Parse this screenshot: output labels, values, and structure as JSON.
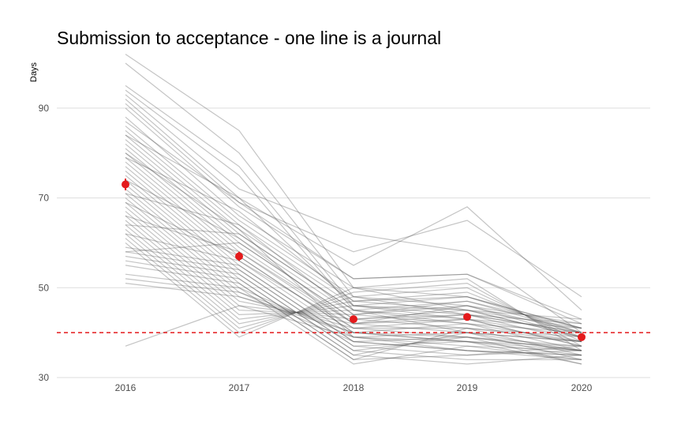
{
  "chart_data": {
    "type": "line",
    "title": "Submission to acceptance - one line is a journal",
    "ylabel": "Days",
    "xlabel": "",
    "x": [
      "2016",
      "2017",
      "2018",
      "2019",
      "2020"
    ],
    "ylim": [
      30,
      100
    ],
    "yticks": [
      30,
      50,
      70,
      90
    ],
    "grid": "horizontal",
    "legend": "none",
    "reference_line": {
      "y": 40,
      "color": "#e41a1c",
      "style": "dashed"
    },
    "mean": {
      "values": [
        73,
        57,
        43,
        43.5,
        39
      ],
      "error": [
        1.3,
        1.0,
        0.6,
        0.6,
        0.5
      ],
      "color": "#e41a1c"
    },
    "journal_color": "#555555",
    "journals": [
      [
        102,
        85,
        50,
        45,
        41
      ],
      [
        100,
        80,
        48,
        44,
        40
      ],
      [
        95,
        77,
        46,
        43,
        39
      ],
      [
        94,
        75,
        45,
        42,
        38
      ],
      [
        93,
        72,
        62,
        58,
        40
      ],
      [
        92,
        70,
        55,
        68,
        45
      ],
      [
        91,
        69,
        58,
        65,
        48
      ],
      [
        90,
        68,
        52,
        53,
        42
      ],
      [
        88,
        66,
        50,
        48,
        41
      ],
      [
        86,
        65,
        48,
        46,
        40
      ],
      [
        85,
        64,
        47,
        45,
        39
      ],
      [
        84,
        63,
        46,
        44,
        38
      ],
      [
        83,
        62,
        45,
        43,
        37
      ],
      [
        82,
        61,
        44,
        42,
        36
      ],
      [
        81,
        60,
        43,
        41,
        35
      ],
      [
        80,
        59,
        42,
        40,
        34
      ],
      [
        79,
        58,
        41,
        39,
        33
      ],
      [
        78,
        57,
        40,
        38,
        33
      ],
      [
        77,
        56,
        39,
        37,
        34
      ],
      [
        76,
        55,
        38,
        36,
        35
      ],
      [
        75,
        54,
        37,
        38,
        36
      ],
      [
        74,
        53,
        36,
        39,
        37
      ],
      [
        73,
        52,
        35,
        40,
        38
      ],
      [
        72,
        51,
        34,
        41,
        39
      ],
      [
        71,
        50,
        33,
        37,
        36
      ],
      [
        70,
        49,
        40,
        42,
        40
      ],
      [
        69,
        48,
        41,
        43,
        41
      ],
      [
        68,
        47,
        42,
        44,
        42
      ],
      [
        67,
        46,
        43,
        45,
        43
      ],
      [
        66,
        45,
        44,
        46,
        42
      ],
      [
        65,
        44,
        45,
        47,
        41
      ],
      [
        64,
        43,
        46,
        48,
        40
      ],
      [
        63,
        42,
        47,
        49,
        39
      ],
      [
        62,
        41,
        48,
        50,
        38
      ],
      [
        61,
        40,
        49,
        51,
        37
      ],
      [
        60,
        39,
        50,
        52,
        36
      ],
      [
        59,
        55,
        38,
        36,
        35
      ],
      [
        58,
        54,
        37,
        35,
        36
      ],
      [
        57,
        53,
        36,
        34,
        34
      ],
      [
        56,
        52,
        35,
        33,
        35
      ],
      [
        55,
        51,
        34,
        35,
        37
      ],
      [
        53,
        50,
        39,
        40,
        38
      ],
      [
        52,
        49,
        38,
        39,
        36
      ],
      [
        51,
        48,
        40,
        38,
        35
      ],
      [
        37,
        46,
        39,
        38,
        37
      ],
      [
        66,
        58,
        42,
        46,
        39
      ],
      [
        71,
        64,
        44,
        47,
        40
      ],
      [
        79,
        67,
        47,
        48,
        41
      ],
      [
        84,
        70,
        46,
        45,
        39
      ],
      [
        62,
        56,
        41,
        41,
        38
      ],
      [
        58,
        60,
        43,
        44,
        40
      ],
      [
        74,
        61,
        42,
        43,
        37
      ],
      [
        80,
        63,
        39,
        36,
        34
      ],
      [
        69,
        57,
        40,
        39,
        36
      ],
      [
        87,
        69,
        52,
        53,
        43
      ],
      [
        64,
        62,
        45,
        40,
        36
      ]
    ]
  }
}
